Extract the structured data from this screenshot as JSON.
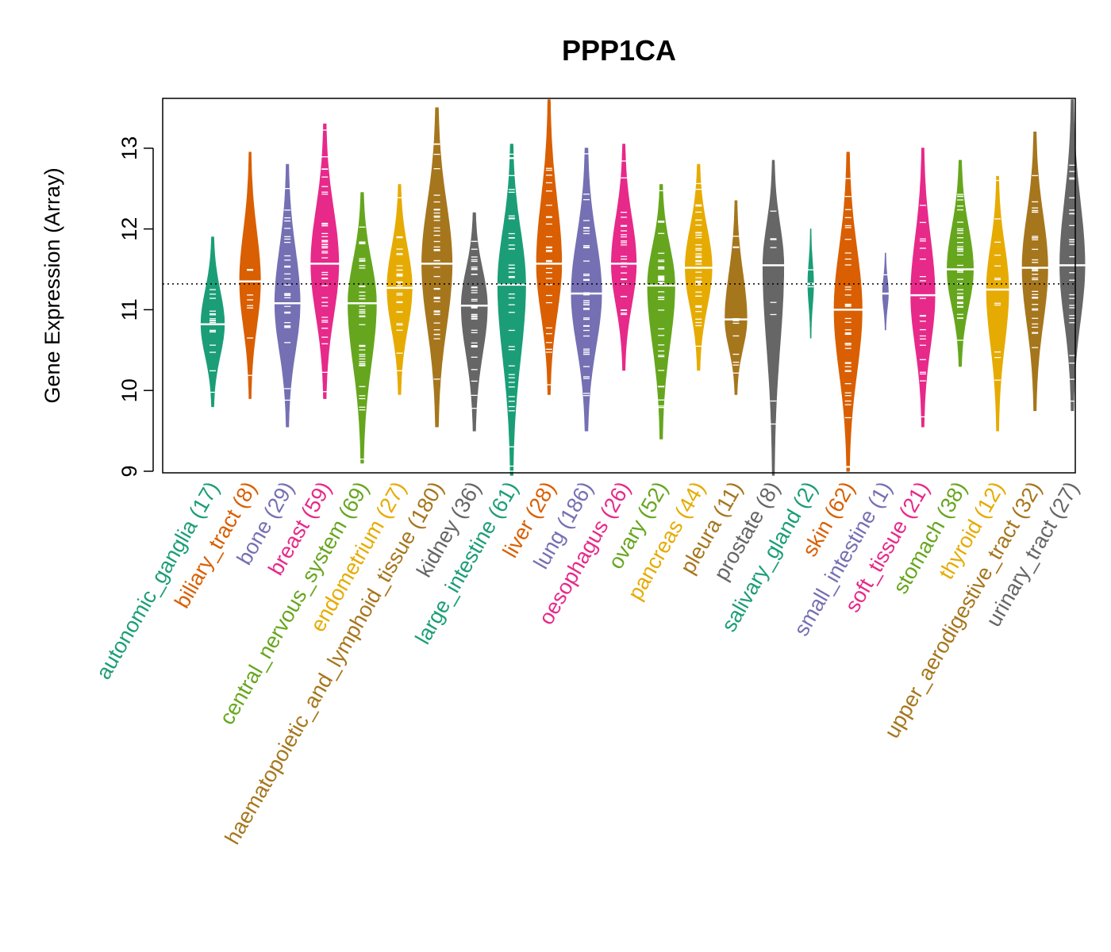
{
  "chart_data": {
    "type": "violin",
    "title": "PPP1CA",
    "xlabel": "",
    "ylabel": "Gene Expression (Array)",
    "ylim": [
      8.95,
      13.6
    ],
    "yticks": [
      9,
      10,
      11,
      12,
      13
    ],
    "reference_line": 11.32,
    "categories": [
      {
        "name": "autonomic_ganglia",
        "n": 17,
        "label": "autonomic_ganglia (17)",
        "color": "#1b9e77",
        "min": 9.8,
        "max": 11.9,
        "median": 10.82
      },
      {
        "name": "biliary_tract",
        "n": 8,
        "label": "biliary_tract (8)",
        "color": "#d95f02",
        "min": 9.9,
        "max": 12.95,
        "median": 11.35
      },
      {
        "name": "bone",
        "n": 29,
        "label": "bone (29)",
        "color": "#7570b3",
        "min": 9.55,
        "max": 12.8,
        "median": 11.08
      },
      {
        "name": "breast",
        "n": 59,
        "label": "breast (59)",
        "color": "#e7298a",
        "min": 9.9,
        "max": 13.3,
        "median": 11.57
      },
      {
        "name": "central_nervous_system",
        "n": 69,
        "label": "central_nervous_system (69)",
        "color": "#66a61e",
        "min": 9.1,
        "max": 12.45,
        "median": 11.08
      },
      {
        "name": "endometrium",
        "n": 27,
        "label": "endometrium (27)",
        "color": "#e6ab02",
        "min": 9.95,
        "max": 12.55,
        "median": 11.27
      },
      {
        "name": "haematopoietic_and_lymphoid_tissue",
        "n": 180,
        "label": "haematopoietic_and_lymphoid_tissue (180)",
        "color": "#a6761d",
        "min": 9.55,
        "max": 13.5,
        "median": 11.57
      },
      {
        "name": "kidney",
        "n": 36,
        "label": "kidney (36)",
        "color": "#666666",
        "min": 9.5,
        "max": 12.2,
        "median": 11.05
      },
      {
        "name": "large_intestine",
        "n": 61,
        "label": "large_intestine (61)",
        "color": "#1b9e77",
        "min": 8.95,
        "max": 13.05,
        "median": 11.31
      },
      {
        "name": "liver",
        "n": 28,
        "label": "liver (28)",
        "color": "#d95f02",
        "min": 9.95,
        "max": 13.6,
        "median": 11.57
      },
      {
        "name": "lung",
        "n": 186,
        "label": "lung (186)",
        "color": "#7570b3",
        "min": 9.5,
        "max": 13.0,
        "median": 11.2
      },
      {
        "name": "oesophagus",
        "n": 26,
        "label": "oesophagus (26)",
        "color": "#e7298a",
        "min": 10.25,
        "max": 13.05,
        "median": 11.57
      },
      {
        "name": "ovary",
        "n": 52,
        "label": "ovary (52)",
        "color": "#66a61e",
        "min": 9.4,
        "max": 12.55,
        "median": 11.3
      },
      {
        "name": "pancreas",
        "n": 44,
        "label": "pancreas (44)",
        "color": "#e6ab02",
        "min": 10.25,
        "max": 12.8,
        "median": 11.52
      },
      {
        "name": "pleura",
        "n": 11,
        "label": "pleura (11)",
        "color": "#a6761d",
        "min": 9.95,
        "max": 12.35,
        "median": 10.88
      },
      {
        "name": "prostate",
        "n": 8,
        "label": "prostate (8)",
        "color": "#666666",
        "min": 8.95,
        "max": 12.85,
        "median": 11.55
      },
      {
        "name": "salivary_gland",
        "n": 2,
        "label": "salivary_gland (2)",
        "color": "#1b9e77",
        "min": 10.65,
        "max": 12.0,
        "median": 11.32
      },
      {
        "name": "skin",
        "n": 62,
        "label": "skin (62)",
        "color": "#d95f02",
        "min": 9.0,
        "max": 12.95,
        "median": 11.0
      },
      {
        "name": "small_intestine",
        "n": 1,
        "label": "small_intestine (1)",
        "color": "#7570b3",
        "min": 10.75,
        "max": 11.7,
        "median": 11.2
      },
      {
        "name": "soft_tissue",
        "n": 21,
        "label": "soft_tissue (21)",
        "color": "#e7298a",
        "min": 9.55,
        "max": 13.0,
        "median": 11.18
      },
      {
        "name": "stomach",
        "n": 38,
        "label": "stomach (38)",
        "color": "#66a61e",
        "min": 10.3,
        "max": 12.85,
        "median": 11.5
      },
      {
        "name": "thyroid",
        "n": 12,
        "label": "thyroid (12)",
        "color": "#e6ab02",
        "min": 9.5,
        "max": 12.65,
        "median": 11.25
      },
      {
        "name": "upper_aerodigestive_tract",
        "n": 32,
        "label": "upper_aerodigestive_tract (32)",
        "color": "#a6761d",
        "min": 9.75,
        "max": 13.2,
        "median": 11.52
      },
      {
        "name": "urinary_tract",
        "n": 27,
        "label": "urinary_tract (27)",
        "color": "#666666",
        "min": 9.75,
        "max": 13.6,
        "median": 11.55
      }
    ]
  }
}
